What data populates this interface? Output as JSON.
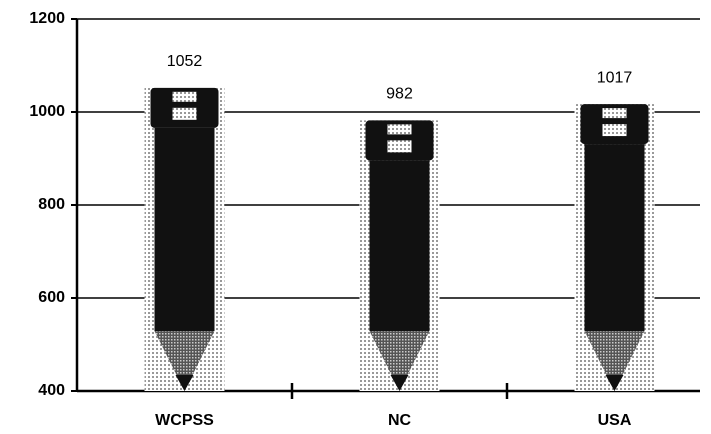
{
  "chart_data": {
    "type": "bar",
    "categories": [
      "WCPSS",
      "NC",
      "USA"
    ],
    "values": [
      1052,
      982,
      1017
    ],
    "color": "#111111",
    "ylim": [
      400,
      1200
    ],
    "yticks": [
      400,
      600,
      800,
      1000,
      1200
    ],
    "grid": true
  }
}
